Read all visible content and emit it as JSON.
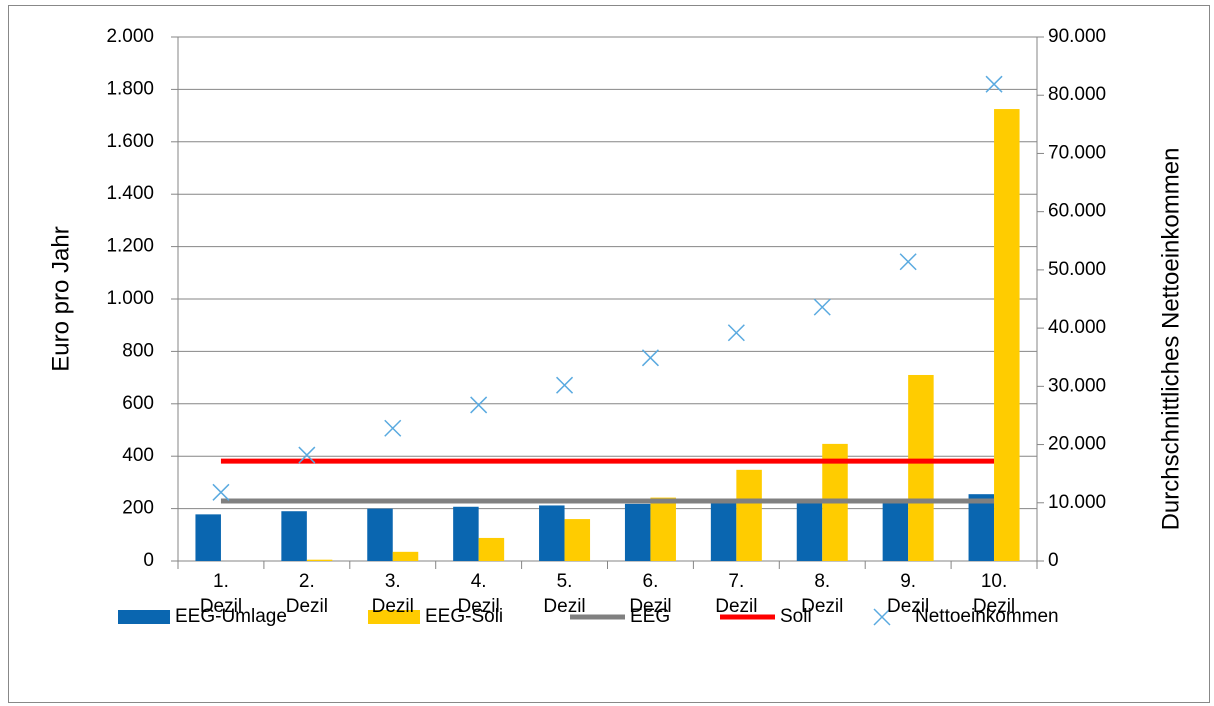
{
  "chart_data": {
    "type": "bar",
    "categories": [
      "1. Dezil",
      "2. Dezil",
      "3. Dezil",
      "4. Dezil",
      "5. Dezil",
      "6. Dezil",
      "7. Dezil",
      "8. Dezil",
      "9. Dezil",
      "10. Dezil"
    ],
    "y_label": "Euro pro Jahr",
    "y2_label": "Durchschnittliches Nettoeinkommen",
    "ylim": [
      0,
      2000
    ],
    "yticks": [
      0,
      200,
      400,
      600,
      800,
      {
        "value": 1000,
        "label": "1.000"
      },
      {
        "value": 1200,
        "label": "1.200"
      },
      {
        "value": 1400,
        "label": "1.400"
      },
      {
        "value": 1600,
        "label": "1.600"
      },
      {
        "value": 1800,
        "label": "1.800"
      },
      {
        "value": 2000,
        "label": "2.000"
      }
    ],
    "y2lim": [
      0,
      90000
    ],
    "y2ticks": [
      0,
      {
        "value": 10000,
        "label": "10.000"
      },
      {
        "value": 20000,
        "label": "20.000"
      },
      {
        "value": 30000,
        "label": "30.000"
      },
      {
        "value": 40000,
        "label": "40.000"
      },
      {
        "value": 50000,
        "label": "50.000"
      },
      {
        "value": 60000,
        "label": "60.000"
      },
      {
        "value": 70000,
        "label": "70.000"
      },
      {
        "value": 80000,
        "label": "80.000"
      },
      {
        "value": 90000,
        "label": "90.000"
      }
    ],
    "grid": true,
    "legend": "bottom",
    "series": [
      {
        "name": "EEG-Umlage",
        "type": "bar",
        "color": "#0a66b0",
        "values": [
          178,
          190,
          200,
          207,
          212,
          218,
          225,
          232,
          232,
          255
        ]
      },
      {
        "name": "EEG-Soli",
        "type": "bar",
        "color": "#ffcc00",
        "values": [
          0,
          5,
          35,
          88,
          160,
          242,
          348,
          447,
          710,
          1725
        ]
      },
      {
        "name": "EEG",
        "type": "line",
        "color": "#808080",
        "values": [
          229,
          229,
          229,
          229,
          229,
          229,
          229,
          229,
          229,
          229
        ]
      },
      {
        "name": "Soli",
        "type": "line",
        "color": "#ff0000",
        "values": [
          381,
          381,
          381,
          381,
          381,
          381,
          381,
          381,
          381,
          381
        ]
      },
      {
        "name": "Nettoeinkommen",
        "type": "scatter",
        "color": "#5aaae0",
        "axis": "y2",
        "values": [
          11800,
          18200,
          22800,
          26800,
          30200,
          34900,
          39200,
          43600,
          51400,
          81900
        ]
      }
    ]
  }
}
